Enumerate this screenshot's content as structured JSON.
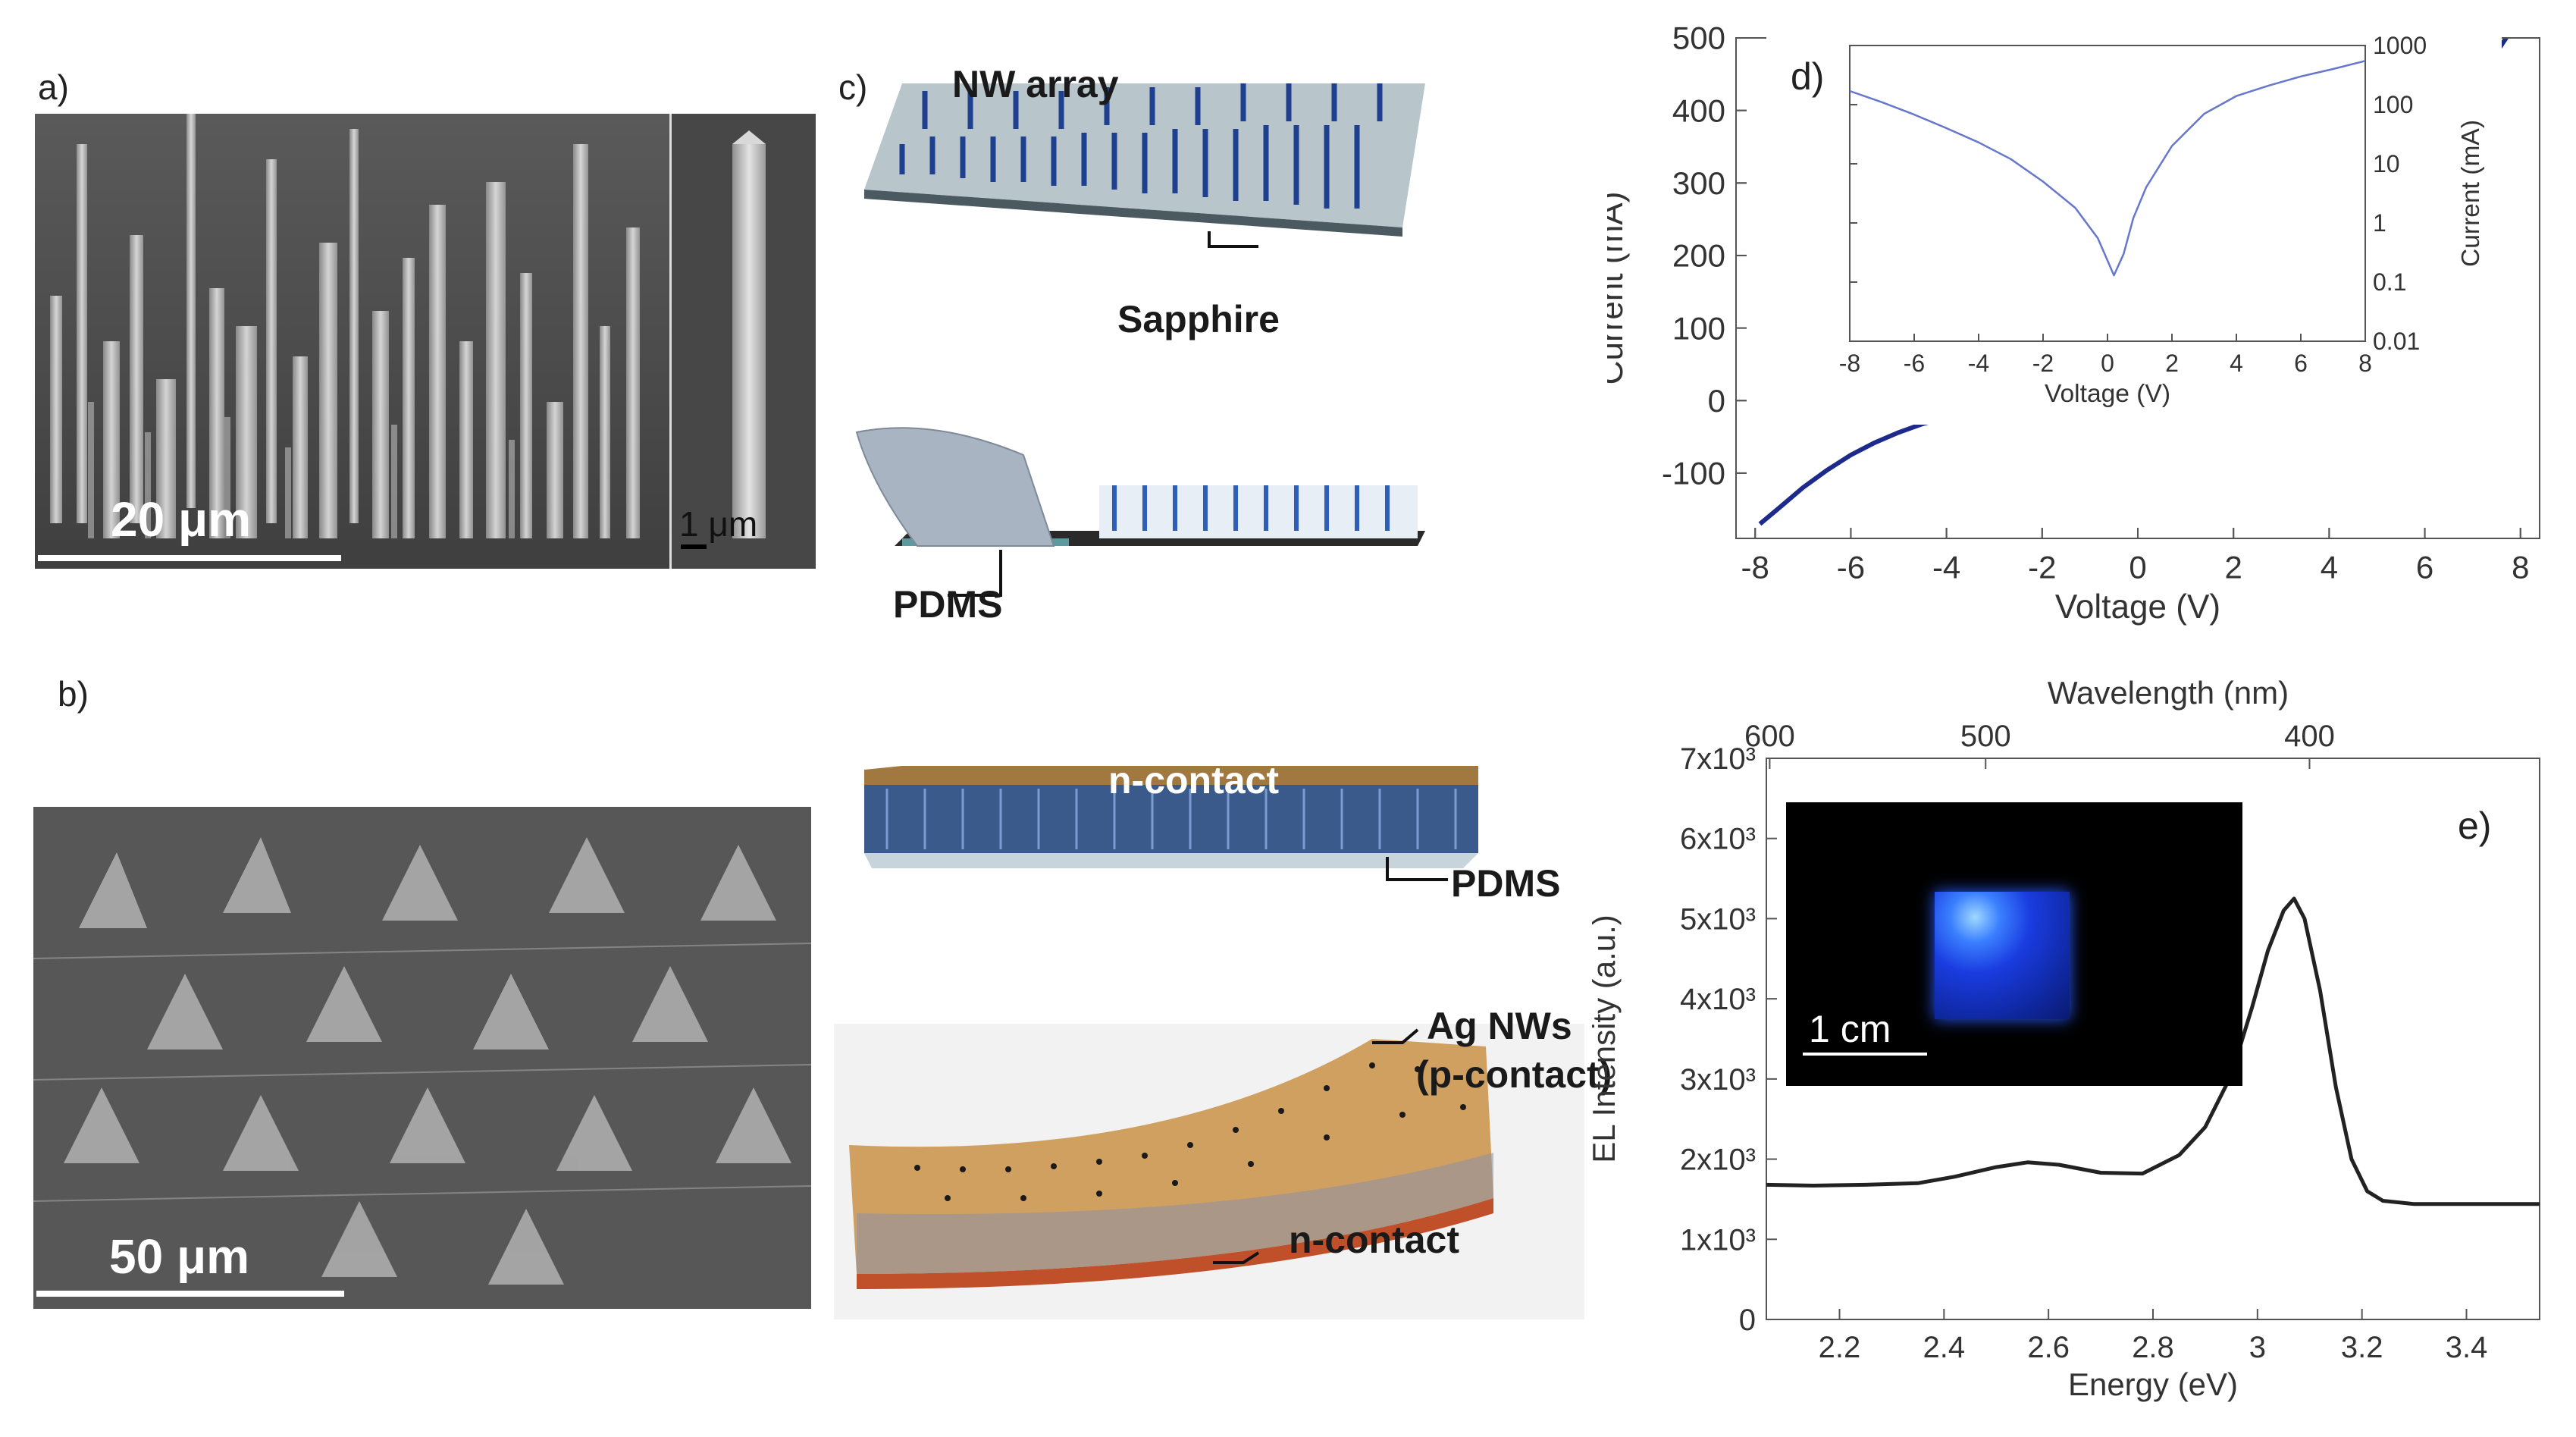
{
  "panels": {
    "a": {
      "label": "a)",
      "scalebar_main": "20 μm",
      "scalebar_inset": "1 μm"
    },
    "b": {
      "label": "b)",
      "scalebar": "50 μm"
    },
    "c": {
      "label": "c)",
      "labels": {
        "nw_array": "NW array",
        "sapphire": "Sapphire",
        "pdms_1": "PDMS",
        "n_contact_top": "n-contact",
        "pdms_2": "PDMS",
        "ag_nws_line1": "Ag NWs",
        "ag_nws_line2": "(p-contact)",
        "n_contact_bottom": "n-contact"
      }
    },
    "d": {
      "label": "d)",
      "inset_xlabel": "Voltage (V)",
      "inset_ylabel": "Current (mA)"
    },
    "e": {
      "label": "e)",
      "inset_scalebar": "1 cm"
    }
  },
  "chart_data": [
    {
      "id": "iv-main",
      "type": "line",
      "xlabel": "Voltage (V)",
      "ylabel": "Current (mA)",
      "xlim": [
        -8.4,
        8.4
      ],
      "ylim": [
        -190,
        500
      ],
      "x_ticks": [
        -8,
        -6,
        -4,
        -2,
        0,
        2,
        4,
        6,
        8
      ],
      "y_ticks": [
        -100,
        0,
        100,
        200,
        300,
        400,
        500
      ],
      "color": "#1c2a8c",
      "series": [
        {
          "x": [
            -7.9,
            -7.5,
            -7,
            -6.5,
            -6,
            -5.5,
            -5,
            -4.5,
            -4,
            -3.5,
            -3,
            -2.5,
            -2,
            -1.5,
            -1,
            -0.5,
            0,
            0.5,
            1,
            1.5,
            2,
            2.5,
            3,
            3.5,
            4,
            4.5,
            5,
            5.5,
            6,
            6.5,
            7,
            7.5,
            7.9
          ],
          "y": [
            -170,
            -148,
            -120,
            -96,
            -75,
            -58,
            -44,
            -32,
            -24,
            -18,
            -13,
            -10,
            -8,
            -6,
            -5,
            -4,
            -3,
            -2,
            2,
            10,
            28,
            52,
            80,
            108,
            138,
            168,
            200,
            245,
            300,
            360,
            420,
            480,
            520
          ]
        }
      ]
    },
    {
      "id": "iv-inset-log",
      "type": "line",
      "xlabel": "Voltage (V)",
      "ylabel": "Current (mA)",
      "xlim": [
        -8,
        8
      ],
      "ylim": [
        0.01,
        1000
      ],
      "y_scale": "log",
      "x_ticks": [
        -8,
        -6,
        -4,
        -2,
        0,
        2,
        4,
        6,
        8
      ],
      "y_ticks": [
        0.01,
        0.1,
        1,
        10,
        100,
        1000
      ],
      "y_tick_labels": [
        "0.01",
        "0.1",
        "1",
        "10",
        "100",
        "1000"
      ],
      "color": "#6677cc",
      "series": [
        {
          "x": [
            -8,
            -7,
            -6,
            -5,
            -4,
            -3,
            -2,
            -1,
            -0.3,
            0.2,
            0.5,
            0.8,
            1.2,
            2,
            3,
            4,
            5,
            6,
            7,
            8
          ],
          "y": [
            170,
            110,
            68,
            40,
            23,
            12,
            5,
            1.8,
            0.55,
            0.13,
            0.3,
            1.2,
            4,
            20,
            70,
            140,
            210,
            300,
            400,
            550
          ]
        }
      ]
    },
    {
      "id": "el-spectrum",
      "type": "line",
      "xlabel": "Energy (eV)",
      "ylabel": "EL Intensity (a.u.)",
      "top_xlabel": "Wavelength (nm)",
      "top_x_ticks": [
        600,
        500,
        400
      ],
      "xlim": [
        2.06,
        3.54
      ],
      "ylim": [
        0,
        7000
      ],
      "x_ticks": [
        2.2,
        2.4,
        2.6,
        2.8,
        3.0,
        3.2,
        3.4
      ],
      "y_ticks": [
        0,
        1000,
        2000,
        3000,
        4000,
        5000,
        6000,
        7000
      ],
      "y_tick_labels": [
        "0",
        "1x10³",
        "2x10³",
        "3x10³",
        "4x10³",
        "5x10³",
        "6x10³",
        "7x10³"
      ],
      "color": "#222222",
      "series": [
        {
          "x": [
            2.06,
            2.15,
            2.25,
            2.35,
            2.42,
            2.5,
            2.56,
            2.62,
            2.7,
            2.78,
            2.85,
            2.9,
            2.95,
            2.99,
            3.02,
            3.05,
            3.07,
            3.09,
            3.12,
            3.15,
            3.18,
            3.21,
            3.24,
            3.3,
            3.4,
            3.54
          ],
          "y": [
            1680,
            1670,
            1680,
            1700,
            1780,
            1900,
            1960,
            1930,
            1830,
            1820,
            2050,
            2400,
            3050,
            3900,
            4600,
            5100,
            5250,
            5000,
            4100,
            2900,
            2000,
            1600,
            1480,
            1440,
            1440,
            1440
          ]
        }
      ]
    }
  ]
}
